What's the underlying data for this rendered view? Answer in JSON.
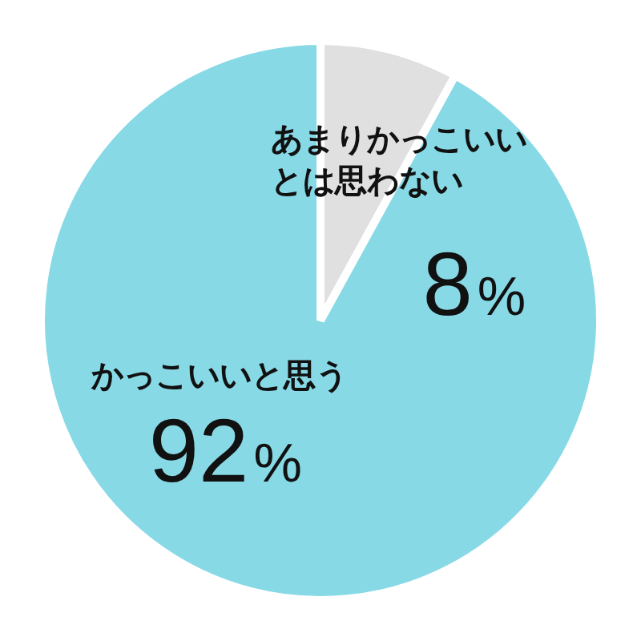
{
  "chart_data": {
    "type": "pie",
    "categories": [
      "あまりかっこいいとは思わない",
      "かっこいいと思う"
    ],
    "values": [
      8,
      92
    ],
    "colors": [
      "#e0e0e0",
      "#88d9e6"
    ],
    "value_labels": [
      "8%",
      "92%"
    ]
  }
}
